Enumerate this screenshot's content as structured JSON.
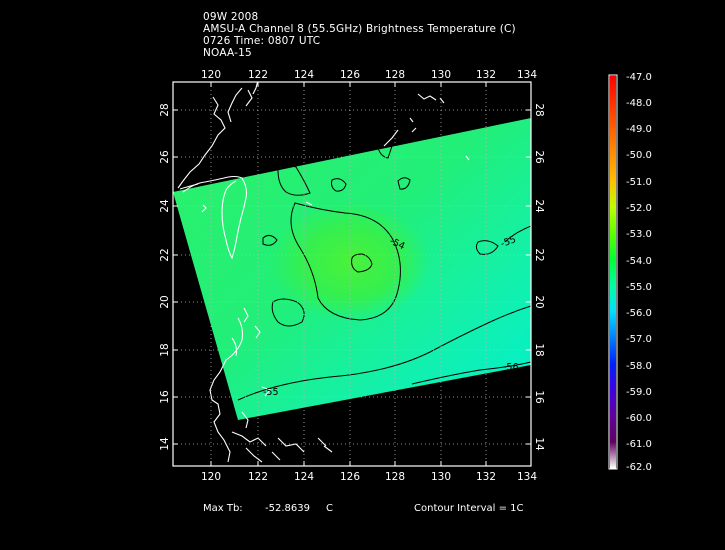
{
  "header": {
    "line1": "09W 2008",
    "line2": "AMSU-A Channel 8 (55.5GHz) Brightness Temperature (C)",
    "line3": "0726 Time: 0807 UTC",
    "line4": "NOAA-15"
  },
  "axes": {
    "lon_ticks": [
      "120",
      "122",
      "124",
      "126",
      "128",
      "130",
      "132",
      "134"
    ],
    "lat_ticks": [
      "28",
      "26",
      "24",
      "22",
      "20",
      "18",
      "16",
      "14"
    ]
  },
  "contour_labels": [
    "-54",
    "-55",
    "-55",
    "-56"
  ],
  "colorbar": {
    "labels": [
      "-47.0",
      "-48.0",
      "-49.0",
      "-50.0",
      "-51.0",
      "-52.0",
      "-53.0",
      "-54.0",
      "-55.0",
      "-56.0",
      "-57.0",
      "-58.0",
      "-59.0",
      "-60.0",
      "-61.0",
      "-62.0"
    ],
    "colors": [
      "#ff0000",
      "#ff3000",
      "#ff6000",
      "#ff9000",
      "#ffc000",
      "#c0ff00",
      "#60ff00",
      "#00ff30",
      "#00ffa0",
      "#00e0ff",
      "#0080ff",
      "#0020ff",
      "#4000e0",
      "#6000a0",
      "#600060",
      "#ffffff"
    ]
  },
  "footer": {
    "max_tb_label": "Max Tb:",
    "max_tb_value": "-52.8639",
    "max_tb_unit": "C",
    "contour_interval": "Contour Interval = 1C"
  }
}
